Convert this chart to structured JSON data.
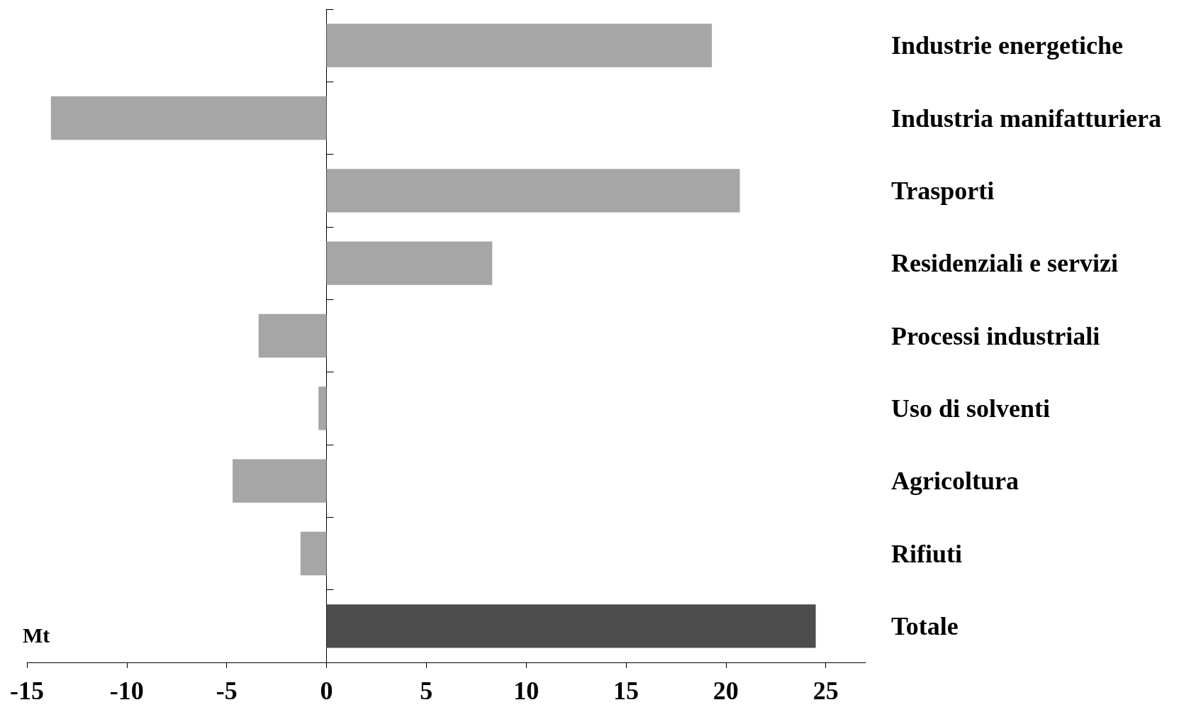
{
  "chart_data": {
    "type": "bar",
    "orientation": "horizontal",
    "xlabel": "Mt",
    "categories": [
      "Industrie energetiche",
      "Industria manifatturiera",
      "Trasporti",
      "Residenziali e servizi",
      "Processi industriali",
      "Uso di solventi",
      "Agricoltura",
      "Rifiuti",
      "Totale"
    ],
    "values": [
      19.3,
      -13.8,
      20.7,
      8.3,
      -3.4,
      -0.4,
      -4.7,
      -1.3,
      24.5
    ],
    "colors": [
      "#a6a6a6",
      "#a6a6a6",
      "#a6a6a6",
      "#a6a6a6",
      "#a6a6a6",
      "#a6a6a6",
      "#a6a6a6",
      "#a6a6a6",
      "#4d4d4d"
    ],
    "xlim": [
      -15,
      27
    ],
    "xticks": [
      -15,
      -10,
      -5,
      0,
      5,
      10,
      15,
      20,
      25
    ]
  }
}
